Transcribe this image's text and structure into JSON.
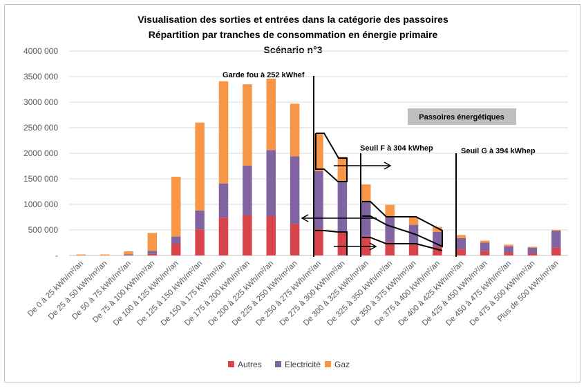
{
  "chart_data": {
    "type": "bar",
    "stacked": true,
    "title": [
      "Visualisation des sorties et entrées dans la catégorie des passoires",
      "Répartition par tranches de consommation en énergie primaire",
      "Scénario n°3"
    ],
    "ylim": [
      0,
      4000000
    ],
    "yticks": [
      "-",
      "500 000",
      "1000 000",
      "1500 000",
      "2000 000",
      "2500 000",
      "3000 000",
      "3500 000",
      "4000 000"
    ],
    "grid": true,
    "legend_position": "bottom",
    "categories": [
      "De 0 à 25 kWh/m²/an",
      "De 25 à 50 kWh/m²/an",
      "De 50 à 75 kWh/m²/an",
      "De 75 à 100 kWh/m²/an",
      "De 100 à 125 kWh/m²/an",
      "De 125 à 150 kWh/m²/an",
      "De 150 à 175 kWh/m²/an",
      "De 175 à 200 kWh/m²/an",
      "De 200 à 225 kWh/m²/an",
      "De 225 à 250 kWh/m²/an",
      "De 250 à 275 kWh/m²/an",
      "De 275 à 300 kWh/m²/an",
      "De 300 à 325 kWh/m²/an",
      "De 325 à 350 kWh/m²/an",
      "De 350 à 375 kWh/m²/an",
      "De 375 à 400 kWh/m²/an",
      "De 400 à 425 kWh/m²/an",
      "De 425 à 450 kWh/m²/an",
      "De 450 à 475 kWh/m²/an",
      "De 475 à 500 kWh/m²/an",
      "Plus de 500 kWh/m²/an"
    ],
    "series": [
      {
        "name": "Autres",
        "color": "#d9434a",
        "values": [
          0,
          0,
          0,
          30000,
          230000,
          510000,
          740000,
          790000,
          770000,
          620000,
          520000,
          470000,
          380000,
          260000,
          220000,
          170000,
          120000,
          90000,
          60000,
          40000,
          150000
        ]
      },
      {
        "name": "Electricité",
        "color": "#8064a2",
        "values": [
          0,
          0,
          20000,
          60000,
          140000,
          370000,
          670000,
          970000,
          1290000,
          1320000,
          1130000,
          970000,
          670000,
          510000,
          380000,
          290000,
          220000,
          160000,
          120000,
          110000,
          330000
        ]
      },
      {
        "name": "Gaz",
        "color": "#f79646",
        "values": [
          20000,
          20000,
          60000,
          350000,
          1170000,
          1720000,
          2000000,
          1590000,
          1400000,
          1030000,
          740000,
          490000,
          340000,
          220000,
          150000,
          100000,
          60000,
          40000,
          30000,
          20000,
          20000
        ]
      }
    ],
    "annotations": {
      "garde_fou": "Garde fou à 252 kWhef",
      "seuil_f": "Seuil F à 304 kWhep",
      "seuil_g": "Seuil G à 394 kWhep",
      "passoires": "Passoires énergétiques"
    }
  }
}
